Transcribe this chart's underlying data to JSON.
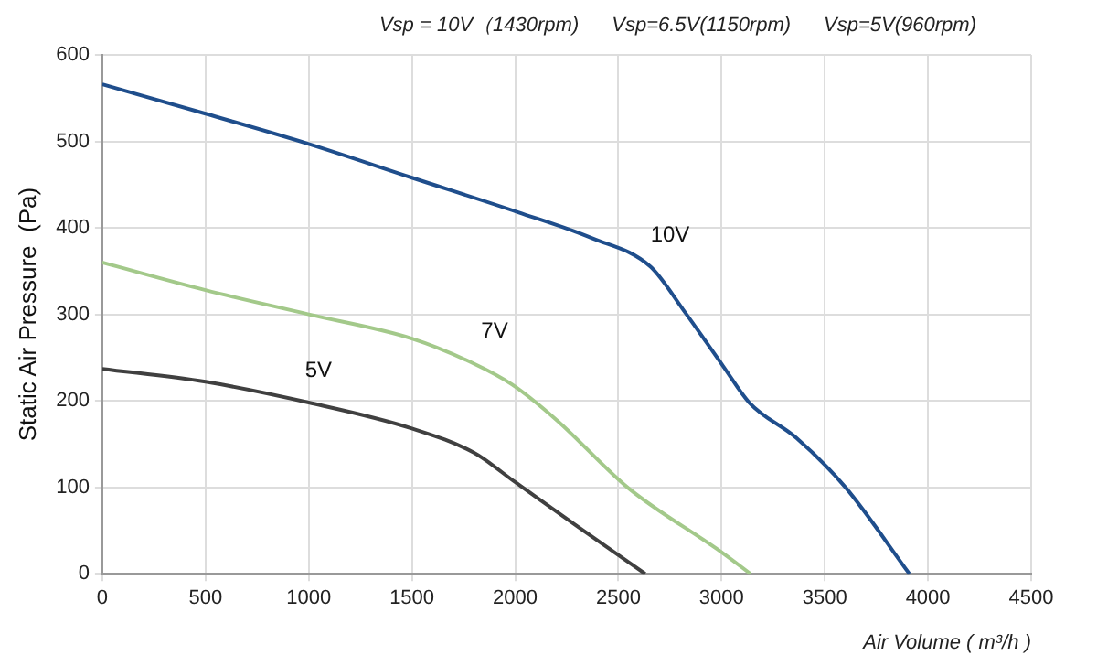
{
  "chart_data": {
    "type": "line",
    "annotations": [
      "Vsp = 10V（1430rpm)",
      "Vsp=6.5V(1150rpm)",
      "Vsp=5V(960rpm)"
    ],
    "xlabel": "Air Volume ( m³/h )",
    "ylabel": "Static Air Pressure  (Pa)",
    "series": [
      {
        "name": "10V",
        "color": "#1f4e8c",
        "x": [
          0,
          500,
          1000,
          1500,
          2015,
          2373,
          2656,
          2815,
          3008,
          3134,
          3363,
          3600,
          3910
        ],
        "values": [
          566,
          532,
          497,
          458,
          418,
          388,
          355,
          305,
          240,
          198,
          157,
          100,
          0
        ]
      },
      {
        "name": "7V",
        "color": "#a3c98a",
        "x": [
          0,
          500,
          1000,
          1500,
          1800,
          1984,
          2200,
          2549,
          3000,
          3140
        ],
        "values": [
          360,
          328,
          300,
          272,
          243,
          219,
          178,
          99,
          25,
          0
        ]
      },
      {
        "name": "5V",
        "color": "#404040",
        "x": [
          0,
          500,
          1000,
          1500,
          1800,
          2000,
          2300,
          2630
        ],
        "values": [
          237,
          222,
          198,
          168,
          140,
          106,
          55,
          0
        ]
      }
    ],
    "xlim": [
      0,
      4500
    ],
    "xticks": [
      0,
      500,
      1000,
      1500,
      2000,
      2500,
      3000,
      3500,
      4000,
      4500
    ],
    "ylim": [
      0,
      600
    ],
    "yticks": [
      0,
      100,
      200,
      300,
      400,
      500,
      600
    ],
    "grid": true,
    "legend": false,
    "marker": "none",
    "line_style": "solid"
  }
}
